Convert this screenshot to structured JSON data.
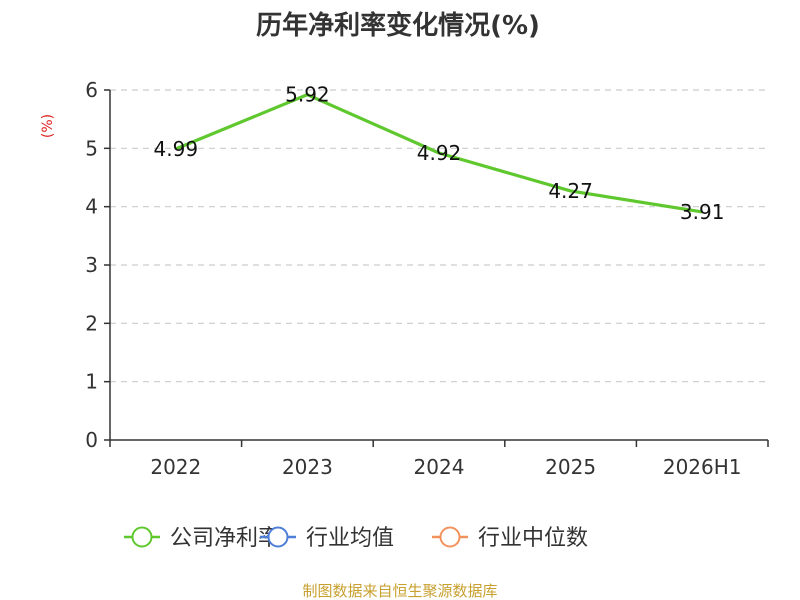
{
  "chart_data": {
    "type": "line",
    "title": "历年净利率变化情况(%)",
    "ylabel": "(%)",
    "categories": [
      "2022",
      "2023",
      "2024",
      "2025",
      "2026H1"
    ],
    "ylim": [
      0,
      6
    ],
    "yticks": [
      "0",
      "1",
      "2",
      "3",
      "4",
      "5",
      "6"
    ],
    "grid": true,
    "series": [
      {
        "name": "公司净利率",
        "values": [
          4.99,
          5.92,
          4.92,
          4.27,
          3.91
        ],
        "labels": [
          "4.99",
          "5.92",
          "4.92",
          "4.27",
          "3.91"
        ],
        "color": "#5fc82e"
      }
    ],
    "legend": [
      {
        "name": "公司净利率",
        "color": "#5fc82e"
      },
      {
        "name": "行业均值",
        "color": "#4e7fd8"
      },
      {
        "name": "行业中位数",
        "color": "#f4925e"
      }
    ],
    "legend_position": "bottom"
  },
  "source": "制图数据来自恒生聚源数据库",
  "colors": {
    "ylabel": "#dd2222",
    "source": "#c8a030",
    "grid": "#cccccc",
    "axis": "#333333"
  }
}
